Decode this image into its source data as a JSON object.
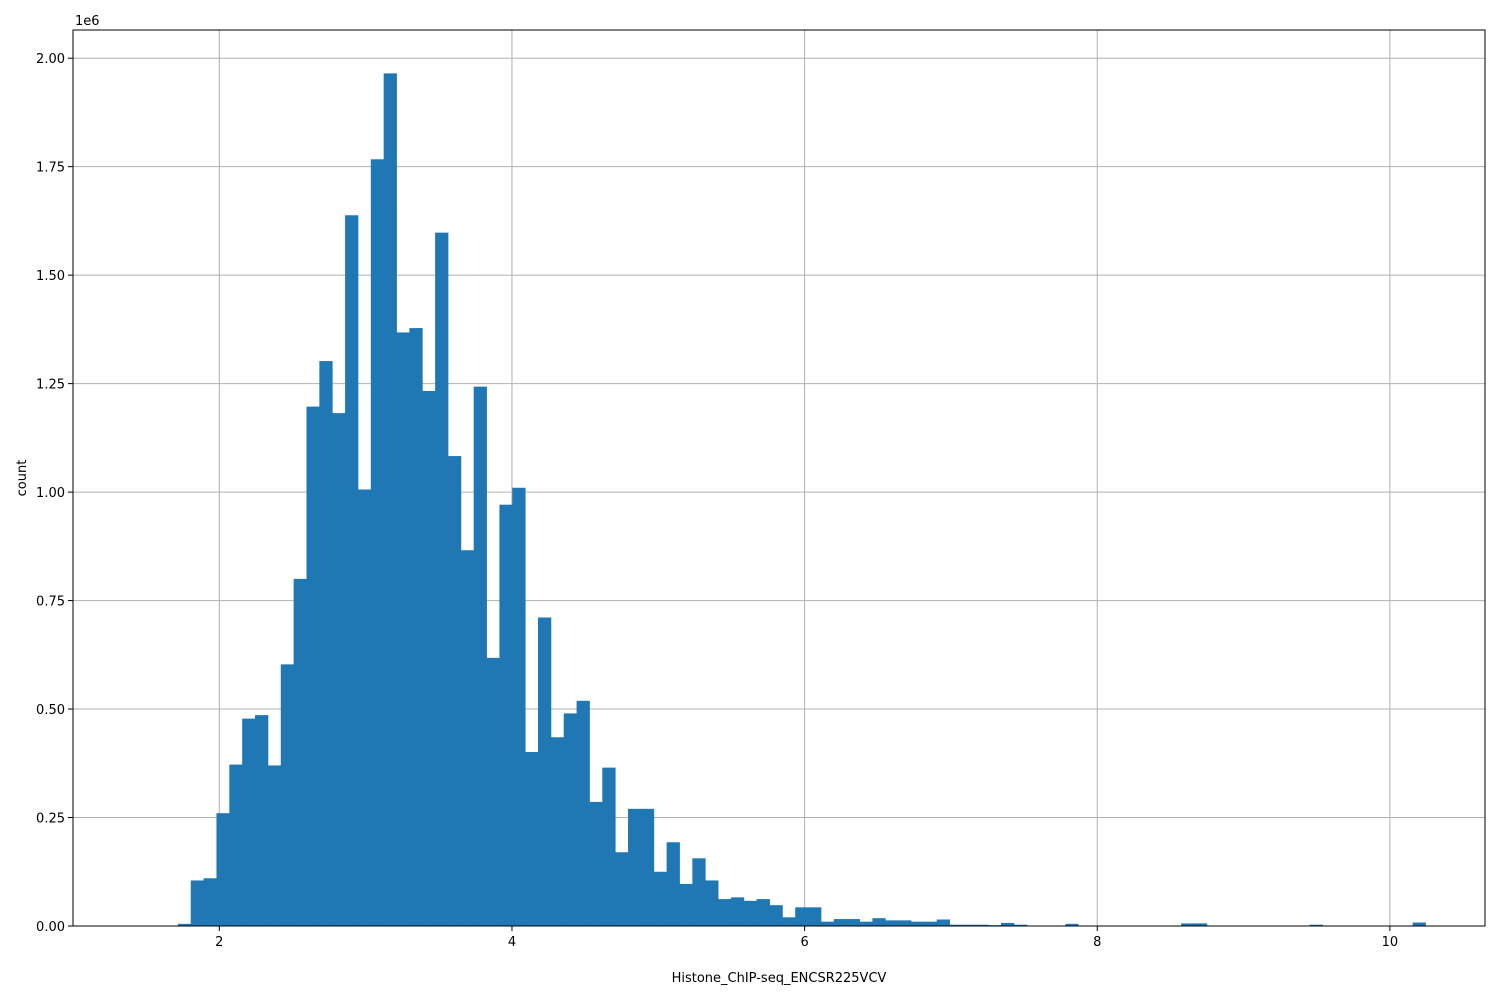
{
  "chart_data": {
    "type": "bar",
    "title": "",
    "xlabel": "Histone_ChIP-seq_ENCSR225VCV",
    "ylabel": "count",
    "offset_text": "1e6",
    "xlim": [
      1.0,
      10.65
    ],
    "ylim": [
      0,
      2.065
    ],
    "x_ticks": [
      2,
      4,
      6,
      8,
      10
    ],
    "x_tick_labels": [
      "2",
      "4",
      "6",
      "8",
      "10"
    ],
    "y_ticks": [
      0,
      0.25,
      0.5,
      0.75,
      1.0,
      1.25,
      1.5,
      1.75,
      2.0
    ],
    "y_tick_labels": [
      "0.00",
      "0.25",
      "0.50",
      "0.75",
      "1.00",
      "1.25",
      "1.50",
      "1.75",
      "2.00"
    ],
    "grid": true,
    "bar_color": "#1f77b4",
    "bin_width": 0.0879,
    "bins_start": [
      1.7168,
      1.8047,
      1.8926,
      1.9805,
      2.0684,
      2.1563,
      2.2442,
      2.3321,
      2.42,
      2.5079,
      2.5958,
      2.6837,
      2.7716,
      2.8595,
      2.9474,
      3.0353,
      3.1232,
      3.2111,
      3.299,
      3.3869,
      3.4748,
      3.5627,
      3.6506,
      3.7385,
      3.8264,
      3.9143,
      4.0022,
      4.0901,
      4.178,
      4.2659,
      4.3538,
      4.4417,
      4.5296,
      4.6175,
      4.7054,
      4.7933,
      4.8812,
      4.9691,
      5.057,
      5.1449,
      5.2328,
      5.3207,
      5.4086,
      5.4965,
      5.5844,
      5.6723,
      5.7602,
      5.8481,
      5.936,
      6.0239,
      6.1118,
      6.1997,
      6.2876,
      6.3755,
      6.4634,
      6.5513,
      6.6392,
      6.7271,
      6.815,
      6.9029,
      6.9908,
      7.0787,
      7.1666,
      7.2545,
      7.3424,
      7.4303,
      7.5182,
      7.6061,
      7.694,
      7.7819,
      7.8698,
      7.9577,
      8.0456,
      8.1335,
      8.2214,
      8.3093,
      8.3972,
      8.4851,
      8.573,
      8.6609,
      8.7488,
      8.8367,
      8.9246,
      9.0125,
      9.1004,
      9.1883,
      9.2762,
      9.3641,
      9.452,
      9.5399,
      9.6278,
      9.7157,
      9.8036,
      9.8915,
      9.9794,
      10.0673,
      10.1552
    ],
    "values": [
      0.005,
      0.105,
      0.11,
      0.26,
      0.372,
      0.478,
      0.486,
      0.37,
      0.603,
      0.8,
      1.197,
      1.302,
      1.182,
      1.638,
      1.006,
      1.767,
      1.965,
      1.368,
      1.378,
      1.233,
      1.598,
      1.083,
      0.866,
      1.243,
      0.618,
      0.971,
      1.01,
      0.401,
      0.711,
      0.435,
      0.49,
      0.519,
      0.286,
      0.365,
      0.17,
      0.27,
      0.27,
      0.125,
      0.193,
      0.097,
      0.156,
      0.105,
      0.062,
      0.066,
      0.058,
      0.062,
      0.048,
      0.02,
      0.043,
      0.043,
      0.01,
      0.016,
      0.016,
      0.01,
      0.018,
      0.013,
      0.013,
      0.01,
      0.01,
      0.015,
      0.003,
      0.003,
      0.003,
      0.002,
      0.007,
      0.003,
      0.001,
      0.0,
      0.0,
      0.005,
      0.0,
      0.0,
      0.0,
      0.0,
      0.0,
      0.0,
      0.0,
      0.0,
      0.006,
      0.006,
      0.0,
      0.0,
      0.0,
      0.0,
      0.0,
      0.0,
      0.0,
      0.0,
      0.003,
      0.0,
      0.0,
      0.0,
      0.0,
      0.0,
      0.0,
      0.0,
      0.008
    ]
  }
}
